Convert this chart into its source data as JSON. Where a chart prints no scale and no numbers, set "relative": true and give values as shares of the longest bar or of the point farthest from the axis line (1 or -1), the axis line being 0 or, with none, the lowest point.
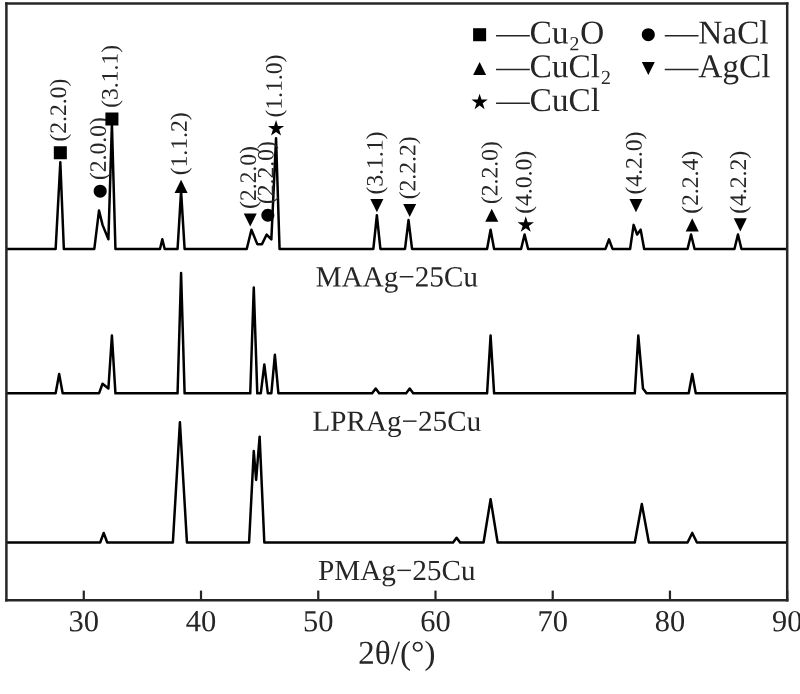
{
  "chart_data": {
    "type": "line",
    "relative": true,
    "xlabel": "2θ/(°)",
    "xlim": [
      23.4,
      90
    ],
    "xticks": [
      30,
      40,
      50,
      60,
      70,
      80,
      90
    ],
    "tick_labels": "x",
    "grid": false,
    "legend": "top right",
    "line_style": "solid",
    "series": [
      {
        "name": "MAAg−25Cu",
        "color": "#000000",
        "x": [
          23.4,
          27.6,
          28.0,
          28.3,
          30.9,
          31.3,
          31.6,
          32.1,
          32.4,
          32.7,
          36.5,
          36.7,
          36.9,
          38.0,
          38.3,
          38.6,
          43.9,
          44.3,
          44.8,
          45.2,
          45.6,
          46.0,
          46.4,
          46.7,
          54.7,
          55.0,
          55.3,
          57.4,
          57.7,
          58.0,
          64.4,
          64.7,
          65.0,
          67.3,
          67.6,
          67.9,
          74.5,
          74.8,
          75.1,
          76.6,
          76.9,
          77.2,
          77.5,
          77.8,
          81.5,
          81.8,
          82.1,
          85.5,
          85.8,
          86.1,
          90
        ],
        "values": [
          0.73,
          0.73,
          0.91,
          0.73,
          0.73,
          0.81,
          0.78,
          0.75,
          0.99,
          0.73,
          0.73,
          0.75,
          0.73,
          0.73,
          0.85,
          0.73,
          0.73,
          0.77,
          0.74,
          0.74,
          0.76,
          0.75,
          0.96,
          0.73,
          0.73,
          0.8,
          0.73,
          0.73,
          0.79,
          0.73,
          0.73,
          0.77,
          0.73,
          0.73,
          0.76,
          0.73,
          0.73,
          0.75,
          0.73,
          0.73,
          0.78,
          0.76,
          0.77,
          0.73,
          0.73,
          0.76,
          0.73,
          0.73,
          0.76,
          0.73,
          0.73
        ]
      },
      {
        "name": "LPRAg−25Cu",
        "color": "#000000",
        "x": [
          23.4,
          27.6,
          27.9,
          28.2,
          31.3,
          31.6,
          32.1,
          32.4,
          32.7,
          38.0,
          38.3,
          38.6,
          44.2,
          44.5,
          44.8,
          45.1,
          45.4,
          45.7,
          46.0,
          46.3,
          46.6,
          54.6,
          54.9,
          55.2,
          57.5,
          57.8,
          58.1,
          64.4,
          64.7,
          65.0,
          77.0,
          77.3,
          77.7,
          78.0,
          81.6,
          81.9,
          82.2,
          90
        ],
        "values": [
          0.43,
          0.43,
          0.47,
          0.43,
          0.43,
          0.45,
          0.44,
          0.55,
          0.43,
          0.43,
          0.68,
          0.43,
          0.43,
          0.65,
          0.43,
          0.43,
          0.49,
          0.43,
          0.43,
          0.51,
          0.43,
          0.43,
          0.44,
          0.43,
          0.43,
          0.44,
          0.43,
          0.43,
          0.55,
          0.43,
          0.43,
          0.55,
          0.44,
          0.43,
          0.43,
          0.47,
          0.43,
          0.43
        ]
      },
      {
        "name": "PMAg−25Cu",
        "color": "#000000",
        "x": [
          23.4,
          31.4,
          31.7,
          32.0,
          37.6,
          38.2,
          38.8,
          44.1,
          44.5,
          44.7,
          45.0,
          45.4,
          61.5,
          61.8,
          62.1,
          64.1,
          64.7,
          65.3,
          77.0,
          77.6,
          78.2,
          81.5,
          81.9,
          82.3,
          90
        ],
        "values": [
          0.12,
          0.12,
          0.14,
          0.12,
          0.12,
          0.37,
          0.12,
          0.12,
          0.31,
          0.25,
          0.34,
          0.12,
          0.12,
          0.13,
          0.12,
          0.12,
          0.21,
          0.12,
          0.12,
          0.2,
          0.12,
          0.12,
          0.14,
          0.12,
          0.12
        ]
      },
      {
        "name": "—Cu₂O",
        "type": "scatter",
        "marker": "square",
        "color": "#000000",
        "x": [
          28.0,
          32.4
        ],
        "values": [
          0.93,
          1.0
        ]
      },
      {
        "name": "—CuCl₂",
        "type": "scatter",
        "marker": "triangle",
        "color": "#000000",
        "x": [
          38.3,
          64.8,
          81.9
        ],
        "values": [
          0.86,
          0.8,
          0.78
        ]
      },
      {
        "name": "—CuCl",
        "type": "scatter",
        "marker": "star",
        "color": "#000000",
        "x": [
          46.4,
          67.7
        ],
        "values": [
          0.98,
          0.78
        ]
      },
      {
        "name": "—NaCl",
        "type": "scatter",
        "marker": "circle",
        "color": "#000000",
        "x": [
          31.4,
          45.7
        ],
        "values": [
          0.85,
          0.8
        ]
      },
      {
        "name": "—AgCl",
        "type": "scatter",
        "marker": "triangle-down",
        "color": "#000000",
        "x": [
          44.2,
          55.0,
          57.8,
          77.1,
          86.0
        ],
        "values": [
          0.79,
          0.82,
          0.81,
          0.82,
          0.78
        ]
      }
    ],
    "annotations": [
      {
        "text": "(2.2.0)",
        "x": 28.0,
        "y": 0.93
      },
      {
        "text": "(2.0.0)",
        "x": 31.4,
        "y": 0.85
      },
      {
        "text": "(3.1.1)",
        "x": 32.4,
        "y": 1.0
      },
      {
        "text": "(1.1.2)",
        "x": 38.3,
        "y": 0.86
      },
      {
        "text": "(2.2.0)",
        "x": 44.2,
        "y": 0.79
      },
      {
        "text": "(2.2.0)",
        "x": 45.7,
        "y": 0.8
      },
      {
        "text": "(1.1.0)",
        "x": 46.4,
        "y": 0.98
      },
      {
        "text": "(3.1.1)",
        "x": 55.0,
        "y": 0.82
      },
      {
        "text": "(2.2.2)",
        "x": 57.8,
        "y": 0.81
      },
      {
        "text": "(2.2.0)",
        "x": 64.8,
        "y": 0.8
      },
      {
        "text": "(4.0.0)",
        "x": 67.7,
        "y": 0.78
      },
      {
        "text": "(4.2.0)",
        "x": 77.1,
        "y": 0.82
      },
      {
        "text": "(2.2.4)",
        "x": 81.9,
        "y": 0.78
      },
      {
        "text": "(4.2.2)",
        "x": 86.0,
        "y": 0.78
      }
    ]
  }
}
